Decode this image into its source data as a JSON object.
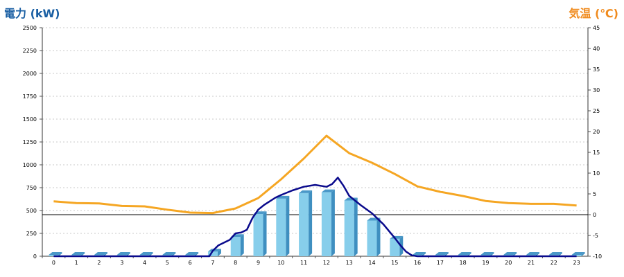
{
  "chart_data": {
    "type": "bar+line",
    "y_left_label": "電力 (kW)",
    "y_right_label": "気温 (℃)",
    "y_left_range": [
      0,
      2500
    ],
    "y_left_ticks": [
      0,
      250,
      500,
      750,
      1000,
      1250,
      1500,
      1750,
      2000,
      2250,
      2500
    ],
    "y_right_range": [
      -10,
      45
    ],
    "y_right_ticks": [
      -10,
      -5,
      0,
      5,
      10,
      15,
      20,
      25,
      30,
      35,
      40,
      45
    ],
    "categories": [
      "0",
      "1",
      "2",
      "3",
      "4",
      "5",
      "6",
      "7",
      "8",
      "9",
      "10",
      "11",
      "12",
      "13",
      "14",
      "15",
      "16",
      "17",
      "18",
      "19",
      "20",
      "21",
      "22",
      "23"
    ],
    "grid": "horizontal dotted",
    "series": [
      {
        "kind": "bar",
        "axis": "left",
        "color": "#87ceeb",
        "values": [
          0,
          0,
          0,
          0,
          0,
          0,
          0,
          50,
          210,
          460,
          630,
          690,
          700,
          610,
          390,
          190,
          0,
          0,
          0,
          0,
          0,
          0,
          0,
          0
        ]
      },
      {
        "kind": "line",
        "axis": "left",
        "color": "#0a0a8c",
        "points": [
          [
            0,
            0
          ],
          [
            1,
            0
          ],
          [
            2,
            0
          ],
          [
            3,
            0
          ],
          [
            4,
            0
          ],
          [
            5,
            0
          ],
          [
            6,
            0
          ],
          [
            6.85,
            0
          ],
          [
            7,
            60
          ],
          [
            7.25,
            120
          ],
          [
            7.5,
            150
          ],
          [
            7.75,
            180
          ],
          [
            8,
            250
          ],
          [
            8.25,
            260
          ],
          [
            8.5,
            290
          ],
          [
            8.75,
            420
          ],
          [
            9,
            510
          ],
          [
            9.25,
            560
          ],
          [
            9.5,
            600
          ],
          [
            9.75,
            640
          ],
          [
            10,
            670
          ],
          [
            10.5,
            720
          ],
          [
            11,
            760
          ],
          [
            11.5,
            780
          ],
          [
            12,
            760
          ],
          [
            12.25,
            790
          ],
          [
            12.5,
            860
          ],
          [
            12.75,
            770
          ],
          [
            13,
            660
          ],
          [
            13.25,
            610
          ],
          [
            13.5,
            560
          ],
          [
            14,
            470
          ],
          [
            14.5,
            350
          ],
          [
            15,
            200
          ],
          [
            15.25,
            120
          ],
          [
            15.5,
            50
          ],
          [
            15.75,
            10
          ],
          [
            16,
            0
          ],
          [
            17,
            0
          ],
          [
            18,
            0
          ],
          [
            19,
            0
          ],
          [
            20,
            0
          ],
          [
            21,
            0
          ],
          [
            22,
            0
          ],
          [
            23,
            0
          ]
        ]
      },
      {
        "kind": "line",
        "axis": "right",
        "color": "#f5a623",
        "values": [
          3.2,
          2.8,
          2.7,
          2.1,
          2.0,
          1.2,
          0.5,
          0.4,
          1.5,
          4.0,
          8.5,
          13.5,
          19.0,
          14.8,
          12.5,
          9.8,
          6.8,
          5.5,
          4.5,
          3.3,
          2.8,
          2.6,
          2.6,
          2.2
        ]
      }
    ]
  }
}
